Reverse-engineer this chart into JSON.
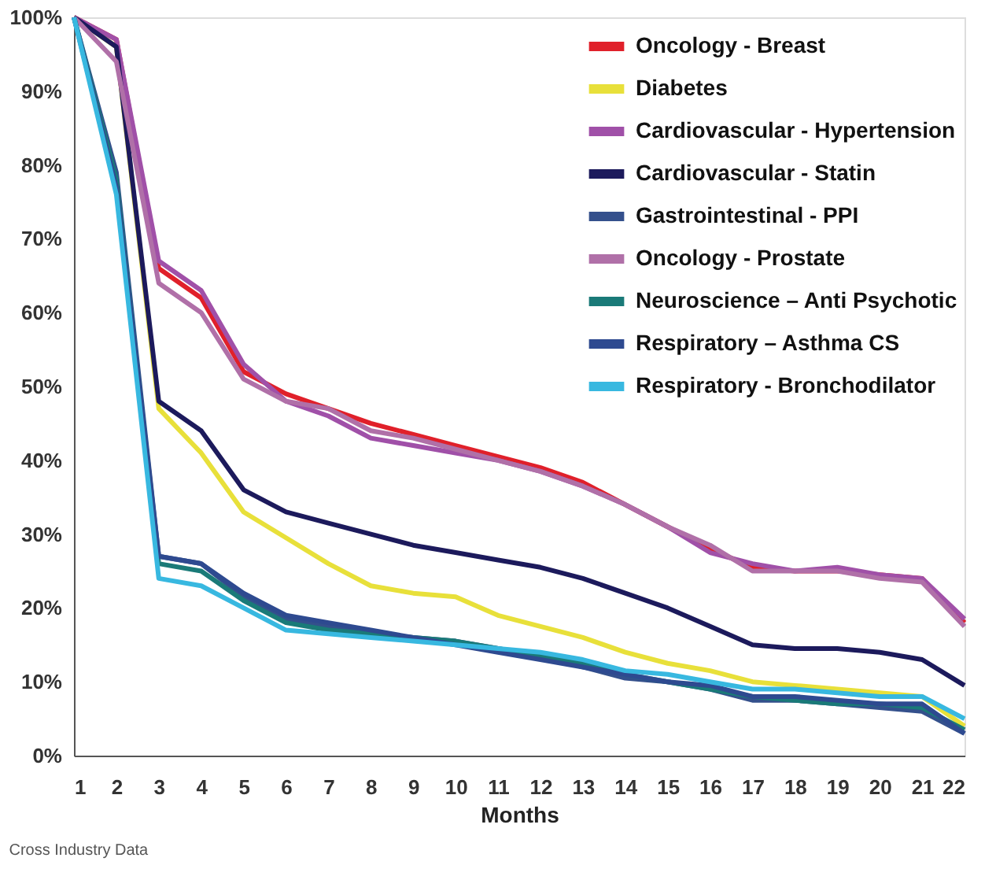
{
  "chart_data": {
    "type": "line",
    "xlabel": "Months",
    "x": [
      1,
      2,
      3,
      4,
      5,
      6,
      7,
      8,
      9,
      10,
      11,
      12,
      13,
      14,
      15,
      16,
      17,
      18,
      19,
      20,
      21,
      22
    ],
    "xlim": [
      1,
      22
    ],
    "xticks": [
      1,
      2,
      3,
      4,
      5,
      6,
      7,
      8,
      9,
      10,
      11,
      12,
      13,
      14,
      15,
      16,
      17,
      18,
      19,
      20,
      21,
      22
    ],
    "ylim": [
      0,
      100
    ],
    "yticks": [
      {
        "value": 0,
        "label": "0%"
      },
      {
        "value": 10,
        "label": "10%"
      },
      {
        "value": 20,
        "label": "20%"
      },
      {
        "value": 30,
        "label": "30%"
      },
      {
        "value": 40,
        "label": "40%"
      },
      {
        "value": 50,
        "label": "50%"
      },
      {
        "value": 60,
        "label": "60%"
      },
      {
        "value": 70,
        "label": "70%"
      },
      {
        "value": 80,
        "label": "80%"
      },
      {
        "value": 90,
        "label": "90%"
      },
      {
        "value": 100,
        "label": "100%"
      }
    ],
    "grid": false,
    "legend": "top right",
    "marker": "none",
    "line_style": "solid",
    "annotations": [
      "Cross Industry Data"
    ],
    "series": [
      {
        "name": "Oncology - Breast",
        "color": "#e0202a",
        "values": [
          100,
          97,
          66,
          62,
          52,
          49,
          47,
          45,
          43.5,
          42,
          40.5,
          39,
          37,
          34,
          31,
          28,
          25.5,
          25,
          25,
          24.5,
          24,
          18
        ]
      },
      {
        "name": "Diabetes",
        "color": "#e8e03a",
        "values": [
          100,
          96,
          47,
          41,
          33,
          29.5,
          26,
          23,
          22,
          21.5,
          19,
          17.5,
          16,
          14,
          12.5,
          11.5,
          10,
          9.5,
          9,
          8.5,
          8,
          4
        ]
      },
      {
        "name": "Cardiovascular - Hypertension",
        "color": "#a050a8",
        "values": [
          100,
          97,
          67,
          63,
          53,
          48,
          46,
          43,
          42,
          41,
          40,
          38.5,
          36.5,
          34,
          31,
          27.5,
          26,
          25,
          25.5,
          24.5,
          24,
          18.5
        ]
      },
      {
        "name": "Cardiovascular - Statin",
        "color": "#1c1a5c",
        "values": [
          100,
          96,
          48,
          44,
          36,
          33,
          31.5,
          30,
          28.5,
          27.5,
          26.5,
          25.5,
          24,
          22,
          20,
          17.5,
          15,
          14.5,
          14.5,
          14,
          13,
          9.5
        ]
      },
      {
        "name": "Gastrointestinal - PPI",
        "color": "#34508c",
        "values": [
          100,
          79,
          27,
          26,
          21.5,
          18.5,
          17.5,
          16.5,
          16,
          15.5,
          14.5,
          13.5,
          12,
          10.5,
          10,
          9,
          7.5,
          7.5,
          7,
          6.5,
          6,
          3
        ]
      },
      {
        "name": "Oncology - Prostate",
        "color": "#b070a8",
        "values": [
          100,
          94,
          64,
          60,
          51,
          48,
          47,
          44,
          43,
          41.5,
          40,
          38.5,
          36.5,
          34,
          31,
          28.5,
          25,
          25,
          25,
          24,
          23.5,
          17.5
        ]
      },
      {
        "name": "Neuroscience – Anti Psychotic",
        "color": "#1a7a78",
        "values": [
          100,
          78,
          26,
          25,
          21,
          18,
          17,
          16.5,
          16,
          15.5,
          14.5,
          13.5,
          12.5,
          11,
          10,
          9,
          8,
          7.5,
          7,
          7,
          6.5,
          3.5
        ]
      },
      {
        "name": "Respiratory – Asthma CS",
        "color": "#2e4a90",
        "values": [
          100,
          77,
          27,
          26,
          22,
          19,
          18,
          17,
          16,
          15,
          14,
          13,
          12,
          11,
          10,
          9.5,
          8,
          8,
          7.5,
          7,
          7,
          3
        ]
      },
      {
        "name": "Respiratory - Bronchodilator",
        "color": "#38b8e0",
        "values": [
          100,
          76,
          24,
          23,
          20,
          17,
          16.5,
          16,
          15.5,
          15,
          14.5,
          14,
          13,
          11.5,
          11,
          10,
          9,
          9,
          8.5,
          8,
          8,
          5
        ]
      }
    ]
  }
}
